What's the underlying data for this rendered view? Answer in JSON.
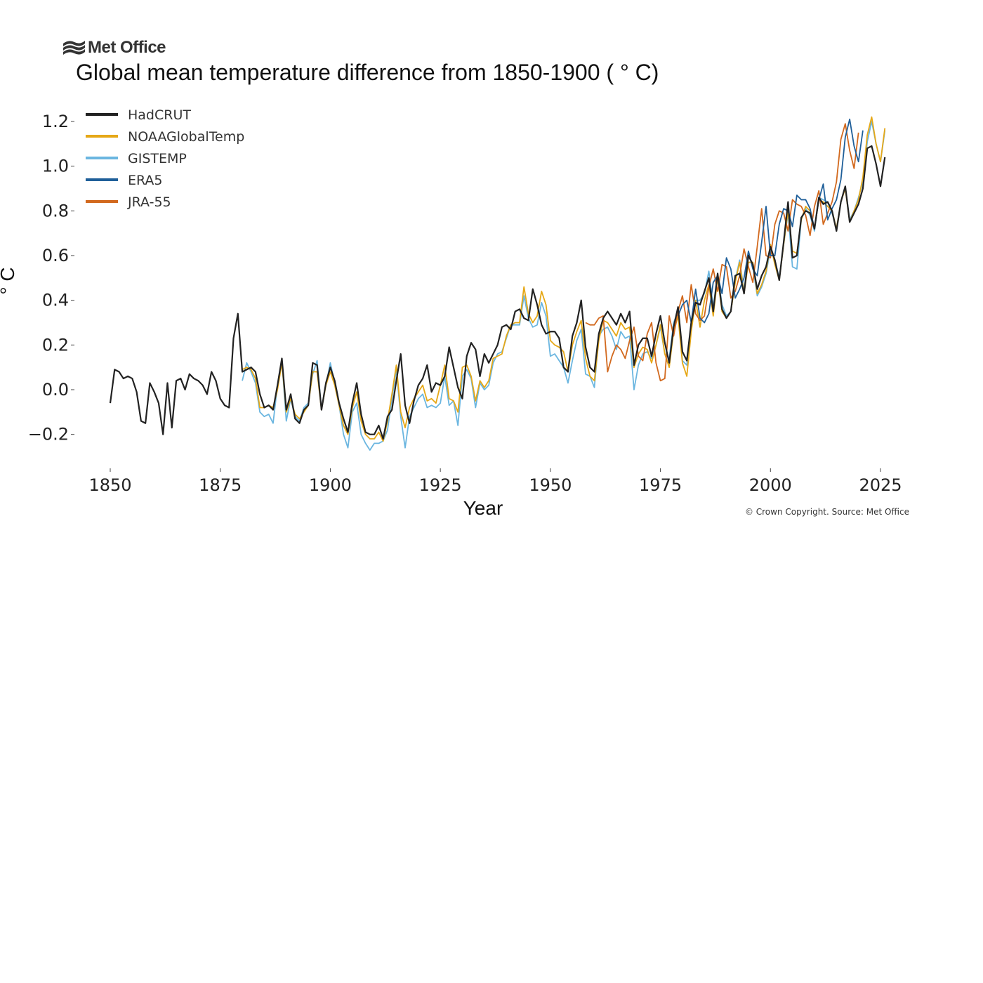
{
  "logo": {
    "text": "Met Office"
  },
  "copyright": "© Crown Copyright. Source: Met Office",
  "colors": {
    "HadCRUT": "#222222",
    "NOAAGlobalTemp": "#E6A817",
    "GISTEMP": "#6BB6E0",
    "ERA5": "#1F5F99",
    "JRA-55": "#D2691E"
  },
  "chart_data": {
    "type": "line",
    "title": "Global mean temperature difference from 1850-1900 ( ° C)",
    "xlabel": "Year",
    "ylabel": "° C",
    "xlim": [
      1845,
      2027
    ],
    "ylim": [
      -0.3,
      1.25
    ],
    "xticks": [
      1850,
      1875,
      1900,
      1925,
      1950,
      1975,
      2000,
      2025
    ],
    "yticks": [
      {
        "value": -0.2,
        "label": "−0.2"
      },
      {
        "value": 0.0,
        "label": "0.0"
      },
      {
        "value": 0.2,
        "label": "0.2"
      },
      {
        "value": 0.4,
        "label": "0.4"
      },
      {
        "value": 0.6,
        "label": "0.6"
      },
      {
        "value": 0.8,
        "label": "0.8"
      },
      {
        "value": 1.0,
        "label": "1.0"
      },
      {
        "value": 1.2,
        "label": "1.2"
      }
    ],
    "grid": false,
    "legend_position": "top-left",
    "series": [
      {
        "name": "HadCRUT",
        "start_year": 1850,
        "values": [
          -0.06,
          0.09,
          0.08,
          0.05,
          0.06,
          0.05,
          -0.01,
          -0.14,
          -0.15,
          0.03,
          -0.01,
          -0.06,
          -0.2,
          0.03,
          -0.17,
          0.04,
          0.05,
          0.0,
          0.07,
          0.05,
          0.04,
          0.02,
          -0.02,
          0.08,
          0.04,
          -0.04,
          -0.07,
          -0.08,
          0.23,
          0.34,
          0.08,
          0.09,
          0.1,
          0.08,
          -0.02,
          -0.08,
          -0.07,
          -0.09,
          0.02,
          0.14,
          -0.09,
          -0.02,
          -0.13,
          -0.15,
          -0.09,
          -0.07,
          0.12,
          0.11,
          -0.09,
          0.03,
          0.1,
          0.04,
          -0.06,
          -0.13,
          -0.19,
          -0.06,
          0.03,
          -0.11,
          -0.19,
          -0.2,
          -0.2,
          -0.16,
          -0.22,
          -0.12,
          -0.09,
          0.04,
          0.16,
          -0.07,
          -0.15,
          -0.05,
          0.02,
          0.05,
          0.11,
          -0.01,
          0.03,
          0.02,
          0.06,
          0.19,
          0.1,
          0.01,
          -0.04,
          0.15,
          0.21,
          0.18,
          0.06,
          0.16,
          0.12,
          0.16,
          0.2,
          0.28,
          0.29,
          0.27,
          0.35,
          0.36,
          0.32,
          0.31,
          0.45,
          0.38,
          0.29,
          0.25,
          0.26,
          0.26,
          0.23,
          0.1,
          0.08,
          0.24,
          0.3,
          0.4,
          0.19,
          0.1,
          0.08,
          0.25,
          0.32,
          0.35,
          0.32,
          0.29,
          0.34,
          0.3,
          0.35,
          0.11,
          0.2,
          0.23,
          0.23,
          0.15,
          0.25,
          0.33,
          0.21,
          0.12,
          0.28,
          0.37,
          0.17,
          0.13,
          0.3,
          0.39,
          0.38,
          0.44,
          0.5,
          0.35,
          0.52,
          0.36,
          0.32,
          0.35,
          0.51,
          0.52,
          0.43,
          0.6,
          0.56,
          0.45,
          0.51,
          0.55,
          0.64,
          0.58,
          0.49,
          0.66,
          0.84,
          0.59,
          0.6,
          0.77,
          0.8,
          0.79,
          0.72,
          0.86,
          0.83,
          0.84,
          0.8,
          0.71,
          0.84,
          0.91,
          0.75,
          0.79,
          0.83,
          0.9,
          1.08,
          1.09,
          1.01,
          0.91,
          1.04
        ]
      },
      {
        "name": "NOAAGlobalTemp",
        "start_year": 1880,
        "values": [
          0.09,
          0.1,
          0.09,
          0.05,
          -0.08,
          -0.08,
          -0.07,
          -0.08,
          0.0,
          0.12,
          -0.1,
          -0.04,
          -0.11,
          -0.13,
          -0.1,
          -0.07,
          0.08,
          0.08,
          -0.09,
          0.02,
          0.08,
          0.02,
          -0.07,
          -0.16,
          -0.2,
          -0.08,
          -0.01,
          -0.14,
          -0.2,
          -0.22,
          -0.22,
          -0.19,
          -0.23,
          -0.14,
          -0.02,
          0.11,
          -0.1,
          -0.17,
          -0.08,
          -0.04,
          -0.01,
          0.02,
          -0.05,
          -0.04,
          -0.06,
          0.02,
          0.11,
          -0.04,
          -0.05,
          -0.1,
          0.1,
          0.11,
          0.06,
          -0.05,
          0.04,
          0.01,
          0.04,
          0.14,
          0.15,
          0.16,
          0.24,
          0.29,
          0.3,
          0.3,
          0.46,
          0.34,
          0.3,
          0.33,
          0.44,
          0.38,
          0.22,
          0.2,
          0.19,
          0.17,
          0.08,
          0.2,
          0.26,
          0.31,
          0.14,
          0.06,
          0.04,
          0.22,
          0.31,
          0.3,
          0.27,
          0.24,
          0.3,
          0.27,
          0.28,
          0.1,
          0.16,
          0.19,
          0.18,
          0.12,
          0.2,
          0.29,
          0.16,
          0.1,
          0.26,
          0.33,
          0.12,
          0.06,
          0.26,
          0.4,
          0.28,
          0.4,
          0.47,
          0.33,
          0.5,
          0.35,
          0.32,
          0.35,
          0.48,
          0.57,
          0.43,
          0.57,
          0.57,
          0.43,
          0.47,
          0.53,
          0.65,
          0.56,
          0.49,
          0.65,
          0.8,
          0.62,
          0.61,
          0.76,
          0.82,
          0.8,
          0.72,
          0.85,
          0.84,
          0.82,
          0.8,
          0.72,
          0.84,
          0.9,
          0.75,
          0.8,
          0.85,
          0.95,
          1.14,
          1.22,
          1.1,
          1.02,
          1.17
        ]
      },
      {
        "name": "GISTEMP",
        "start_year": 1880,
        "values": [
          0.04,
          0.12,
          0.08,
          0.03,
          -0.1,
          -0.12,
          -0.11,
          -0.15,
          0.02,
          0.13,
          -0.14,
          -0.04,
          -0.12,
          -0.14,
          -0.08,
          -0.06,
          0.07,
          0.13,
          -0.09,
          0.02,
          0.12,
          0.03,
          -0.07,
          -0.2,
          -0.26,
          -0.1,
          -0.06,
          -0.2,
          -0.24,
          -0.27,
          -0.24,
          -0.24,
          -0.23,
          -0.18,
          -0.04,
          0.09,
          -0.12,
          -0.26,
          -0.12,
          -0.08,
          -0.04,
          -0.02,
          -0.08,
          -0.07,
          -0.08,
          -0.06,
          0.06,
          -0.07,
          -0.05,
          -0.16,
          0.06,
          0.09,
          0.05,
          -0.08,
          0.03,
          0.0,
          0.02,
          0.12,
          0.16,
          0.17,
          0.23,
          0.29,
          0.29,
          0.29,
          0.42,
          0.32,
          0.28,
          0.29,
          0.39,
          0.33,
          0.15,
          0.16,
          0.13,
          0.1,
          0.03,
          0.13,
          0.22,
          0.27,
          0.07,
          0.06,
          0.01,
          0.24,
          0.27,
          0.28,
          0.24,
          0.18,
          0.26,
          0.23,
          0.24,
          0.0,
          0.11,
          0.16,
          0.17,
          0.14,
          0.2,
          0.28,
          0.16,
          0.14,
          0.3,
          0.35,
          0.13,
          0.11,
          0.3,
          0.4,
          0.4,
          0.43,
          0.53,
          0.37,
          0.52,
          0.38,
          0.33,
          0.35,
          0.49,
          0.58,
          0.44,
          0.61,
          0.55,
          0.42,
          0.46,
          0.52,
          0.63,
          0.58,
          0.5,
          0.65,
          0.79,
          0.55,
          0.54,
          0.76,
          0.81,
          0.78,
          0.71,
          0.86,
          0.85,
          0.84,
          0.79,
          0.72,
          0.84,
          0.91,
          0.76,
          0.8,
          0.86,
          0.93,
          1.11,
          1.2,
          1.1,
          1.02,
          1.16
        ]
      },
      {
        "name": "ERA5",
        "start_year": 1979,
        "values": [
          0.33,
          0.38,
          0.4,
          0.3,
          0.45,
          0.32,
          0.3,
          0.34,
          0.48,
          0.51,
          0.43,
          0.59,
          0.54,
          0.41,
          0.45,
          0.5,
          0.62,
          0.54,
          0.51,
          0.66,
          0.82,
          0.6,
          0.6,
          0.74,
          0.81,
          0.8,
          0.73,
          0.87,
          0.85,
          0.85,
          0.81,
          0.72,
          0.85,
          0.92,
          0.76,
          0.81,
          0.85,
          0.94,
          1.13,
          1.21,
          1.09,
          1.02,
          1.16
        ]
      },
      {
        "name": "JRA-55",
        "start_year": 1958,
        "values": [
          0.3,
          0.29,
          0.29,
          0.32,
          0.33,
          0.08,
          0.15,
          0.2,
          0.18,
          0.14,
          0.22,
          0.28,
          0.15,
          0.13,
          0.25,
          0.3,
          0.12,
          0.04,
          0.05,
          0.33,
          0.24,
          0.35,
          0.42,
          0.3,
          0.47,
          0.34,
          0.31,
          0.33,
          0.46,
          0.54,
          0.44,
          0.56,
          0.55,
          0.41,
          0.44,
          0.51,
          0.63,
          0.55,
          0.48,
          0.64,
          0.81,
          0.6,
          0.59,
          0.74,
          0.8,
          0.79,
          0.71,
          0.85,
          0.83,
          0.82,
          0.78,
          0.69,
          0.82,
          0.89,
          0.74,
          0.79,
          0.84,
          0.93,
          1.12,
          1.19,
          1.07,
          0.99,
          1.15
        ]
      }
    ]
  }
}
